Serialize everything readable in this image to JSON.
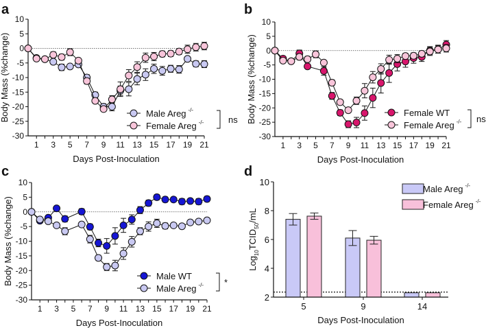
{
  "chart_data": [
    {
      "panel": "a",
      "type": "line",
      "xlabel": "Days Post-Inoculation",
      "ylabel": "Body Mass (%change)",
      "xlim": [
        0,
        21
      ],
      "ylim": [
        -30,
        10
      ],
      "xticks": [
        1,
        3,
        5,
        7,
        9,
        11,
        13,
        15,
        17,
        19,
        21
      ],
      "yticks": [
        10,
        5,
        0,
        -5,
        -10,
        -15,
        -20,
        -25,
        -30
      ],
      "reference_line": 0,
      "x": [
        0,
        1,
        2,
        3,
        4,
        5,
        6,
        7,
        8,
        9,
        10,
        11,
        12,
        13,
        14,
        15,
        16,
        17,
        18,
        19,
        20,
        21
      ],
      "series": [
        {
          "name": "Male Areg",
          "sup": "-/-",
          "color": "#c9c9f2",
          "values": [
            0,
            -3.3,
            -3.7,
            -4.6,
            -6.5,
            -6.2,
            -5.5,
            -10,
            -16,
            -20,
            -20,
            -14.5,
            -14,
            -10.5,
            -9,
            -7,
            -7.7,
            -7,
            -7.2,
            -3.6,
            -5.3,
            -5.4
          ],
          "error": [
            0,
            0.6,
            0.5,
            0.8,
            1.1,
            0.6,
            0.8,
            1,
            1,
            1,
            1.4,
            1.6,
            2.3,
            2,
            2,
            1.6,
            1.5,
            1.2,
            1.3,
            0.8,
            1,
            1.2
          ]
        },
        {
          "name": "Female Areg",
          "sup": "-/-",
          "color": "#f8c5da",
          "values": [
            0,
            -3.5,
            -3.7,
            -2.2,
            -3,
            -1.3,
            -4.2,
            -11.2,
            -18,
            -20.8,
            -17.5,
            -14,
            -9.3,
            -6.4,
            -3.2,
            -2.8,
            -1.9,
            -1.8,
            -1.1,
            -0.3,
            0.4,
            0.8
          ],
          "error": [
            0,
            0.6,
            0.5,
            1,
            1,
            1.2,
            0.8,
            1,
            0.8,
            0.8,
            1.3,
            2.5,
            2,
            1.8,
            1.6,
            1.4,
            1,
            1,
            1,
            1.4,
            1.3,
            1.3
          ]
        }
      ],
      "significance": "ns"
    },
    {
      "panel": "b",
      "type": "line",
      "xlabel": "Days Post-Inoculation",
      "ylabel": "Body Mass (%change)",
      "xlim": [
        0,
        21
      ],
      "ylim": [
        -30,
        10
      ],
      "xticks": [
        1,
        3,
        5,
        7,
        9,
        11,
        13,
        15,
        17,
        19,
        21
      ],
      "yticks": [
        10,
        5,
        0,
        -5,
        -10,
        -15,
        -20,
        -25,
        -30
      ],
      "reference_line": 0,
      "x": [
        0,
        1,
        2,
        3,
        4,
        5,
        6,
        7,
        8,
        9,
        10,
        11,
        12,
        13,
        14,
        15,
        16,
        17,
        18,
        19,
        20,
        21
      ],
      "series": [
        {
          "name": "Female WT",
          "sup": "",
          "color": "#d8166c",
          "values": [
            0,
            -2.8,
            -3.7,
            -1,
            -5.5,
            null,
            -7.1,
            -15.8,
            -21.7,
            -25.7,
            -25.1,
            -21.8,
            -16.5,
            -11.3,
            -7.8,
            -4.7,
            -3.8,
            -2.6,
            -2.2,
            0,
            0.5,
            2.1
          ],
          "error": [
            0,
            0.6,
            0.5,
            1.2,
            0.8,
            0,
            1.5,
            1.2,
            1,
            1.2,
            1.8,
            2.5,
            3.4,
            3.5,
            3.3,
            2.4,
            2,
            1.8,
            1.6,
            1.4,
            1.4,
            1.4
          ]
        },
        {
          "name": "Female Areg",
          "sup": "-/-",
          "color": "#f8c5da",
          "values": [
            0,
            -3.5,
            -3.7,
            -2.2,
            -3,
            -1.3,
            -4.2,
            -11.2,
            -18,
            -20.8,
            -17.5,
            -14,
            -9.3,
            -6.4,
            -3.2,
            -2.8,
            -1.9,
            -1.8,
            -1.1,
            -0.3,
            0.4,
            0.8
          ],
          "error": [
            0,
            0.6,
            0.5,
            1,
            1,
            1.2,
            0.8,
            1,
            0.8,
            0.8,
            1.3,
            2.5,
            2,
            1.8,
            1.6,
            1.4,
            1,
            1,
            1,
            1.4,
            1.3,
            1.3
          ]
        }
      ],
      "significance": "ns"
    },
    {
      "panel": "c",
      "type": "line",
      "xlabel": "Days Post-Inoculation",
      "ylabel": "Body Mass (%change)",
      "xlim": [
        0,
        21
      ],
      "ylim": [
        -30,
        10
      ],
      "xticks": [
        1,
        3,
        5,
        7,
        9,
        11,
        13,
        15,
        17,
        19,
        21
      ],
      "yticks": [
        10,
        5,
        0,
        -5,
        -10,
        -15,
        -20,
        -25,
        -30
      ],
      "reference_line": 0,
      "x": [
        0,
        1,
        2,
        3,
        4,
        5,
        6,
        7,
        8,
        9,
        10,
        11,
        12,
        13,
        14,
        15,
        16,
        17,
        18,
        19,
        20,
        21
      ],
      "series": [
        {
          "name": "Male WT",
          "sup": "",
          "color": "#1616d4",
          "values": [
            0,
            -3,
            -2,
            1.2,
            -2.4,
            null,
            0.1,
            -5.1,
            -10.6,
            -11.6,
            -8.2,
            -4.6,
            -2.6,
            0.6,
            3,
            5,
            4.2,
            4.2,
            3.5,
            3.7,
            3.5,
            4.4
          ],
          "error": [
            0,
            0.8,
            0.6,
            0.6,
            1,
            0,
            1,
            1,
            1.3,
            2.5,
            2.8,
            2.4,
            1.6,
            1.2,
            1,
            0.9,
            0.9,
            0.8,
            1,
            0.8,
            1,
            0.9
          ]
        },
        {
          "name": "Male Areg",
          "sup": "-/-",
          "color": "#c9c9f2",
          "values": [
            0,
            -2.6,
            -3.2,
            -4.6,
            -6.6,
            null,
            -4.3,
            -9.3,
            -15.7,
            -18.8,
            -18.3,
            -14.2,
            -10.2,
            -6.6,
            -5,
            -3.9,
            -4.8,
            -4.6,
            -4.9,
            -3.6,
            -3.3,
            -2.9
          ],
          "error": [
            0,
            0.6,
            0.5,
            0.6,
            1.2,
            0,
            0.6,
            1.3,
            0.9,
            1.2,
            1.8,
            2,
            1.8,
            1.2,
            1.6,
            1.4,
            1,
            0.6,
            0.6,
            0.6,
            0.6,
            0.6
          ]
        }
      ],
      "significance": "*"
    },
    {
      "panel": "d",
      "type": "bar",
      "xlabel": "Days Post-Inoculation",
      "ylabel_parts": {
        "a": "Log",
        "sub1": "10",
        "b": "TCID",
        "sub2": "50",
        "c": "/mL"
      },
      "ylim": [
        2,
        10
      ],
      "yticks": [
        2,
        4,
        6,
        8,
        10
      ],
      "categories": [
        "5",
        "9",
        "14"
      ],
      "limit_of_detection": 2.35,
      "series": [
        {
          "name": "Male Areg",
          "sup": "-/-",
          "color": "#c9c9f7",
          "values": [
            7.4,
            6.1,
            2.3
          ],
          "error": [
            0.4,
            0.52,
            0
          ]
        },
        {
          "name": "Female Areg",
          "sup": "-/-",
          "color": "#f8c0da",
          "values": [
            7.62,
            5.95,
            2.3
          ],
          "error": [
            0.22,
            0.27,
            0
          ]
        }
      ],
      "legend": "top-right"
    }
  ]
}
